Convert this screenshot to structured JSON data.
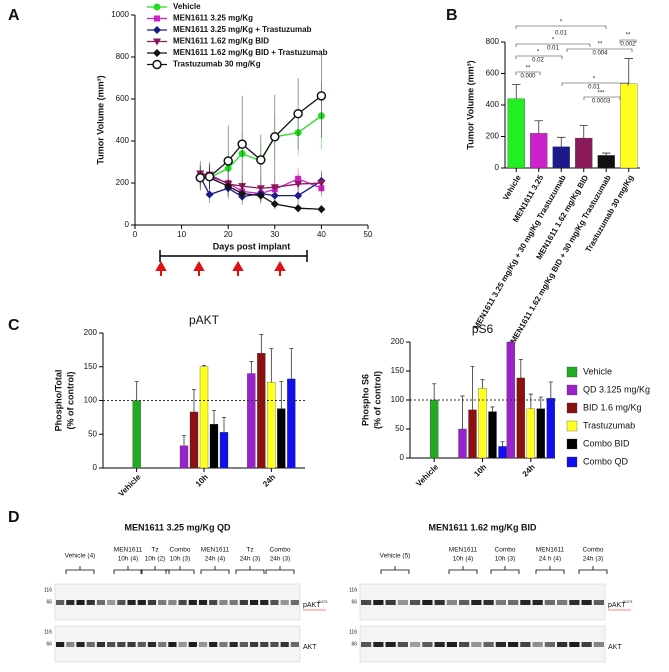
{
  "panels": [
    "A",
    "B",
    "C",
    "D"
  ],
  "chart_data": [
    {
      "type": "line",
      "xlabel": "Days post implant",
      "ylabel": "Tumor Volume (mm³)",
      "x": [
        14,
        16,
        20,
        23,
        27,
        30,
        35,
        40
      ],
      "xlim": [
        0,
        50
      ],
      "xticks": [
        0,
        10,
        20,
        30,
        40,
        50
      ],
      "ylim": [
        0,
        1000
      ],
      "yticks": [
        0,
        200,
        400,
        600,
        800,
        1000
      ],
      "legend": "upper left",
      "series": [
        {
          "name": "Vehicle",
          "color": "#22dd22",
          "marker": "circle",
          "values": [
            225,
            225,
            270,
            340,
            305,
            420,
            440,
            520
          ],
          "errors": [
            60,
            60,
            80,
            100,
            80,
            100,
            110,
            160
          ]
        },
        {
          "name": "MEN1611 3.25 mg/Kg",
          "color": "#cc22cc",
          "marker": "square",
          "values": [
            245,
            230,
            200,
            160,
            150,
            170,
            220,
            175
          ],
          "errors": [
            50,
            60,
            60,
            50,
            50,
            50,
            50,
            40
          ]
        },
        {
          "name": "MEN1611 3.25 mg/Kg + Trastuzumab",
          "color": "#1a1a8c",
          "marker": "diamond",
          "values": [
            230,
            145,
            175,
            135,
            150,
            140,
            140,
            210
          ],
          "errors": [
            50,
            40,
            50,
            40,
            40,
            40,
            40,
            50
          ]
        },
        {
          "name": "MEN1611 1.62 mg/Kg BID",
          "color": "#8b1a5a",
          "marker": "triangle",
          "values": [
            245,
            240,
            195,
            185,
            175,
            180,
            195,
            200
          ],
          "errors": [
            60,
            60,
            60,
            50,
            50,
            50,
            50,
            50
          ]
        },
        {
          "name": "MEN1611 1.62 mg/Kg BID + Trastuzumab",
          "color": "#111111",
          "marker": "diamond",
          "values": [
            225,
            225,
            185,
            150,
            140,
            100,
            80,
            75
          ],
          "errors": [
            50,
            50,
            40,
            30,
            30,
            25,
            20,
            20
          ]
        },
        {
          "name": "Trastuzumab 30 mg/Kg",
          "color": "#111111",
          "marker": "open",
          "values": [
            225,
            230,
            305,
            385,
            310,
            420,
            530,
            615
          ],
          "errors": [
            60,
            60,
            170,
            230,
            120,
            200,
            170,
            200
          ]
        }
      ]
    },
    {
      "type": "bar",
      "ylabel": "Tumor Volume (mm³)",
      "categories": [
        "Vehicle",
        "MEN1611 3.25",
        "MEN1611 3.25 mg/Kg + 30 mg/Kg Trastuzumab",
        "MEN1611 1.62 mg/Kg BID",
        "MEN1611 1.62 mg/Kg BID + 30 mg/Kg Trastuzumab",
        "Trastuzumab 30 mg/Kg"
      ],
      "values": [
        440,
        220,
        135,
        190,
        80,
        535
      ],
      "errors": [
        90,
        80,
        60,
        80,
        15,
        160
      ],
      "colors": [
        "#22ee22",
        "#cc22cc",
        "#1a1a8c",
        "#8b1a5a",
        "#111111",
        "#ffff22"
      ],
      "ylim": [
        0,
        800
      ],
      "yticks": [
        0,
        200,
        400,
        600,
        800
      ],
      "annotations": [
        "*",
        "0.01",
        "*",
        "0.01",
        "*",
        "0.02",
        "**",
        "0.000",
        "**",
        "0.004",
        "**",
        "0.002",
        "*",
        "0.01",
        "***",
        "0.0003"
      ]
    },
    {
      "type": "bar",
      "title": "pAKT",
      "ylabel": [
        "Phospho/Total",
        "(% of control)"
      ],
      "categories": [
        "Vehicle",
        "10h",
        "24h"
      ],
      "ylim": [
        0,
        200
      ],
      "yticks": [
        0,
        50,
        100,
        150,
        200
      ],
      "hline": 100,
      "series": [
        {
          "color": "#22aa22",
          "values": [
            100,
            null,
            null
          ],
          "errors": [
            28,
            null,
            null
          ]
        },
        {
          "color": "#9922cc",
          "values": [
            null,
            33,
            140
          ],
          "errors": [
            null,
            15,
            18
          ]
        },
        {
          "color": "#8b1010",
          "values": [
            null,
            83,
            170
          ],
          "errors": [
            null,
            33,
            28
          ]
        },
        {
          "color": "#ffff22",
          "values": [
            null,
            150,
            127
          ],
          "errors": [
            null,
            2,
            50
          ]
        },
        {
          "color": "#000000",
          "values": [
            null,
            65,
            88
          ],
          "errors": [
            null,
            20,
            40
          ]
        },
        {
          "color": "#1010ee",
          "values": [
            null,
            53,
            132
          ],
          "errors": [
            null,
            22,
            45
          ]
        }
      ]
    },
    {
      "type": "bar",
      "title": "pS6",
      "ylabel": [
        "Phospho S6",
        "(% of control)"
      ],
      "categories": [
        "Vehicle",
        "10h",
        "24h"
      ],
      "ylim": [
        0,
        200
      ],
      "yticks": [
        0,
        50,
        100,
        150,
        200
      ],
      "hline": 100,
      "legend": "right",
      "series": [
        {
          "name": "Vehicle",
          "color": "#22aa22",
          "values": [
            100,
            null,
            null
          ],
          "errors": [
            28,
            null,
            null
          ]
        },
        {
          "name": "QD 3.125 mg/Kg",
          "color": "#9922cc",
          "values": [
            null,
            50,
            200
          ],
          "errors": [
            null,
            57,
            0
          ]
        },
        {
          "name": "BID 1.6 mg/Kg",
          "color": "#8b1010",
          "values": [
            null,
            83,
            138
          ],
          "errors": [
            null,
            75,
            32
          ]
        },
        {
          "name": "Trastuzumab",
          "color": "#ffff22",
          "values": [
            null,
            120,
            85
          ],
          "errors": [
            null,
            15,
            25
          ]
        },
        {
          "name": "Combo BID",
          "color": "#000000",
          "values": [
            null,
            80,
            85
          ],
          "errors": [
            null,
            8,
            20
          ]
        },
        {
          "name": "Combo QD",
          "color": "#1010ee",
          "values": [
            null,
            20,
            103
          ],
          "errors": [
            null,
            8,
            28
          ]
        }
      ]
    }
  ],
  "blots": [
    {
      "title": "MEN1611 3.25 mg/Kg QD",
      "groups": [
        [
          "Vehicle (4)"
        ],
        [
          "MEN1611",
          "10h (4)"
        ],
        [
          "Tz",
          "10h (2)"
        ],
        [
          "Combo",
          "10h (3)"
        ],
        [
          "MEN1611",
          "24h (4)"
        ],
        [
          "Tz",
          "24h (3)"
        ],
        [
          "Combo",
          "24h (3)"
        ]
      ],
      "markers": [
        "116",
        "66",
        "116",
        "66"
      ],
      "bands": [
        "pAKT",
        "S473",
        "AKT"
      ]
    },
    {
      "title": "MEN1611 1.62 mg/Kg BID",
      "groups": [
        [
          "Vehicle (5)"
        ],
        [
          "MEN1611",
          "10h (4)"
        ],
        [
          "Combo",
          "10h (3)"
        ],
        [
          "MEN1611",
          "24 h (4)"
        ],
        [
          "Combo",
          "24h (3)"
        ]
      ],
      "markers": [
        "116",
        "66",
        "116",
        "66"
      ],
      "bands": [
        "pAKT",
        "S473",
        "AKT"
      ]
    }
  ]
}
